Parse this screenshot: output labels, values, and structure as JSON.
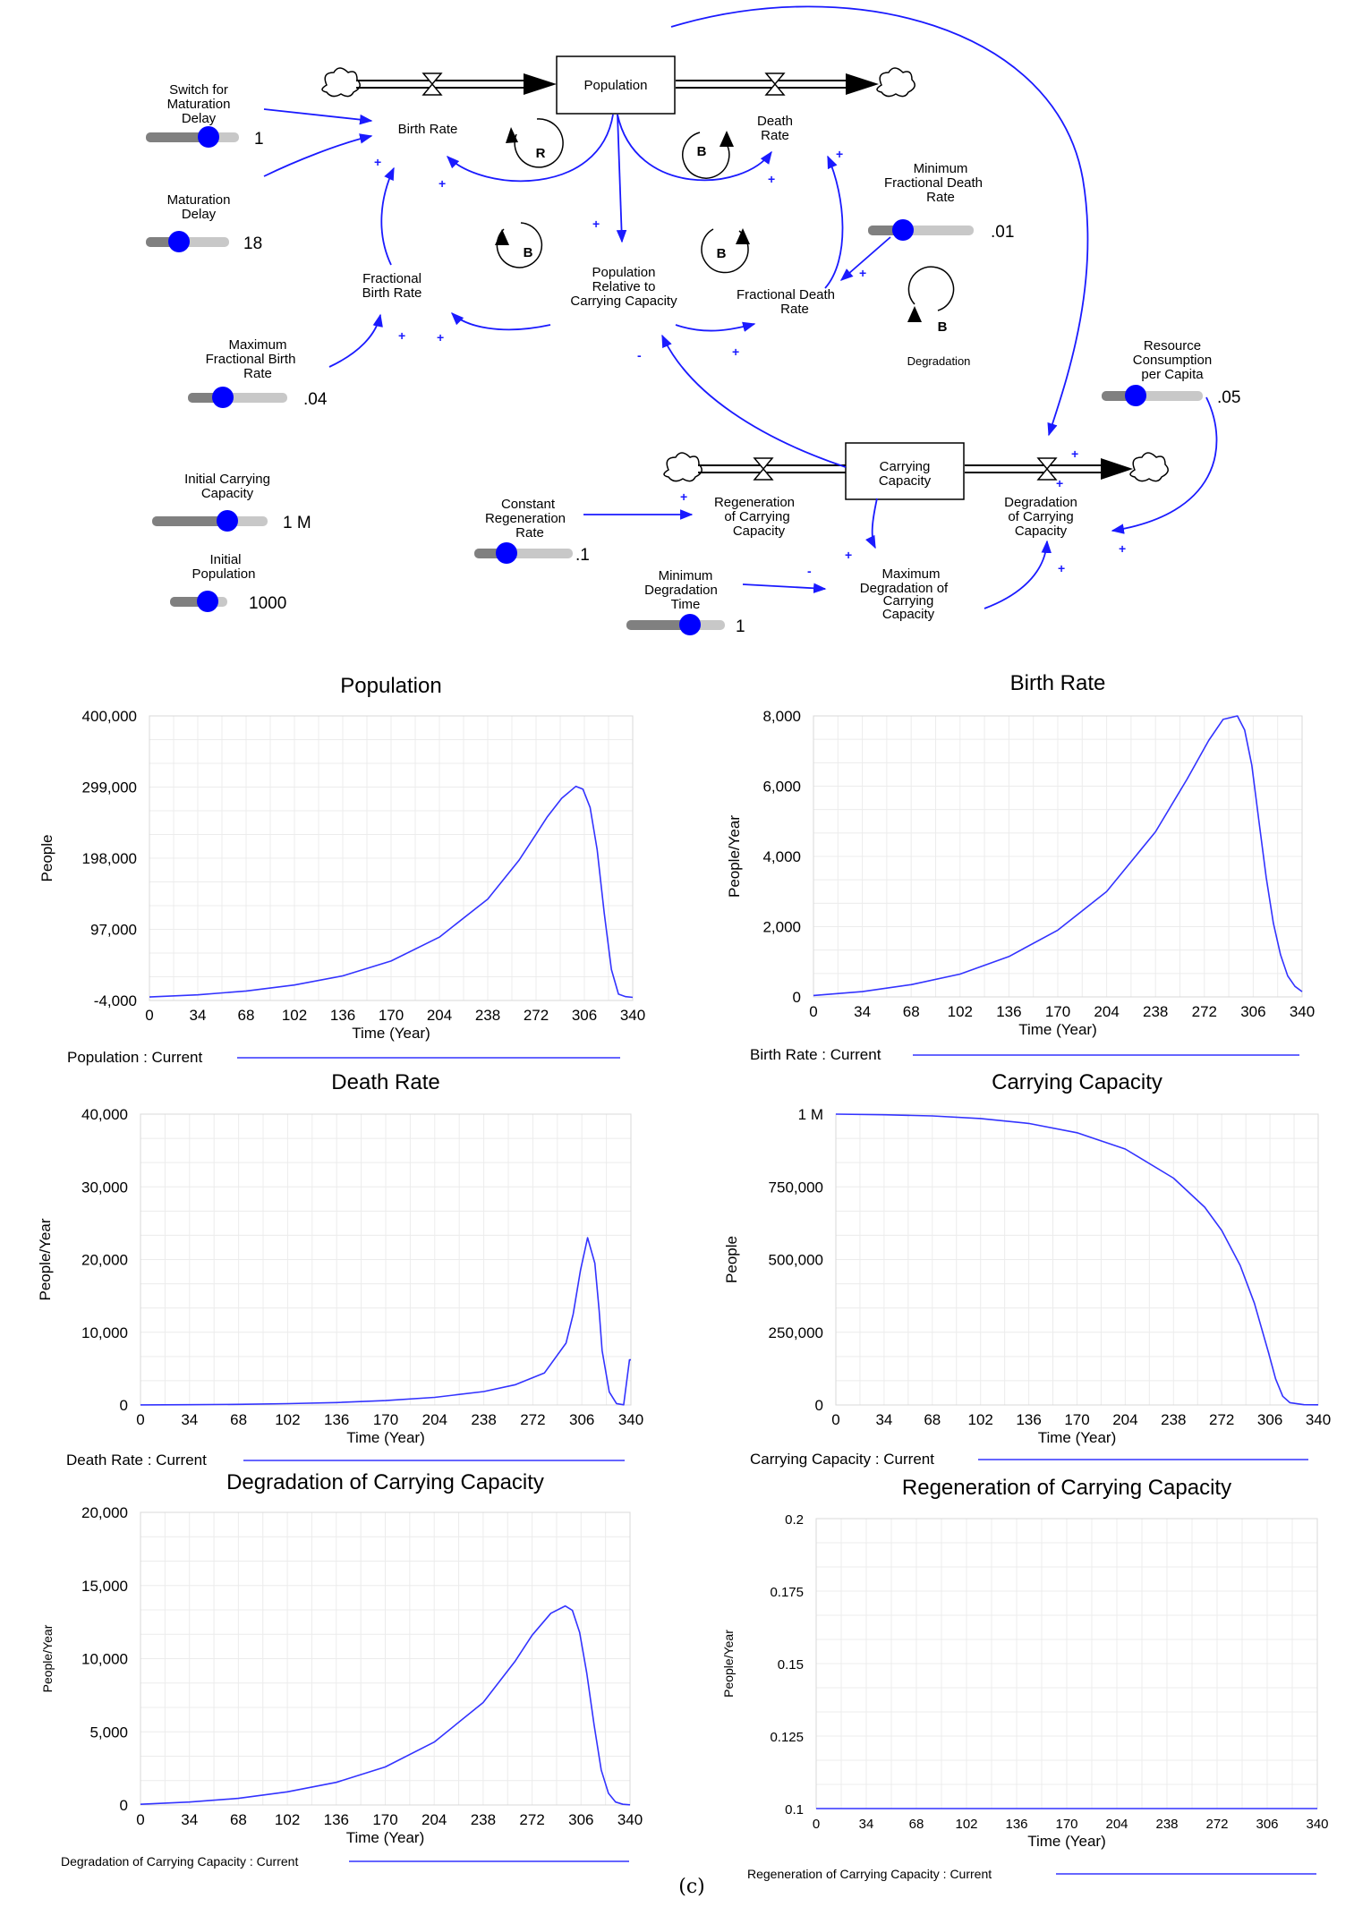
{
  "diagram": {
    "variables": {
      "population": "Population",
      "birth_rate": "Birth Rate",
      "death_rate": [
        "Death",
        "Rate"
      ],
      "fractional_birth_rate": [
        "Fractional",
        "Birth Rate"
      ],
      "pop_rel": [
        "Population",
        "Relative to",
        "Carrying Capacity"
      ],
      "fractional_death_rate": [
        "Fractional Death",
        "Rate"
      ],
      "carrying_capacity": [
        "Carrying",
        "Capacity"
      ],
      "regeneration": [
        "Regeneration",
        "of Carrying",
        "Capacity"
      ],
      "degradation": [
        "Degradation",
        "of Carrying",
        "Capacity"
      ],
      "max_degradation": [
        "Maximum",
        "Degradation of",
        "Carrying",
        "Capacity"
      ]
    },
    "sliders": {
      "switch_maturation": {
        "label": [
          "Switch for",
          "Maturation",
          "Delay"
        ],
        "value": "1",
        "fill": 0.7
      },
      "maturation_delay": {
        "label": [
          "Maturation",
          "Delay"
        ],
        "value": "18",
        "fill": 0.4
      },
      "min_frac_death": {
        "label": [
          "Minimum",
          "Fractional Death",
          "Rate"
        ],
        "value": ".01",
        "fill": 0.33
      },
      "max_frac_birth": {
        "label": [
          "Maximum",
          "Fractional Birth",
          "Rate"
        ],
        "value": ".04",
        "fill": 0.35
      },
      "resource_consumption": {
        "label": [
          "Resource",
          "Consumption",
          "per Capita"
        ],
        "value": ".05",
        "fill": 0.33
      },
      "initial_cc": {
        "label": [
          "Initial Carrying",
          "Capacity"
        ],
        "value": "1 M",
        "fill": 0.75
      },
      "initial_pop": {
        "label": [
          "Initial",
          "Population"
        ],
        "value": "1000",
        "fill": 0.75
      },
      "constant_regen": {
        "label": [
          "Constant",
          "Regeneration",
          "Rate"
        ],
        "value": ".1",
        "fill": 0.4
      },
      "min_degradation_time": {
        "label": [
          "Minimum",
          "Degradation",
          "Time"
        ],
        "value": "1",
        "fill": 0.65
      }
    },
    "loops": {
      "r": "R",
      "b": "B",
      "degradation_name": "Degradation"
    },
    "polarity": {
      "plus": "+",
      "minus": "-"
    }
  },
  "caption": "(c)",
  "chart_data": [
    {
      "type": "line",
      "title": "Population",
      "xlabel": "Time (Year)",
      "ylabel": "People",
      "x_ticks": [
        "0",
        "34",
        "68",
        "102",
        "136",
        "170",
        "204",
        "238",
        "272",
        "306",
        "340"
      ],
      "y_ticks": [
        "400,000",
        "299,000",
        "198,000",
        "97,000",
        "-4,000"
      ],
      "xlim": [
        0,
        340
      ],
      "ylim": [
        -4000,
        400000
      ],
      "legend": "Population : Current",
      "color": "#3333ff",
      "x": [
        0,
        34,
        68,
        102,
        136,
        170,
        204,
        238,
        260,
        272,
        280,
        290,
        300,
        305,
        310,
        315,
        320,
        325,
        330,
        335,
        340
      ],
      "y": [
        1000,
        4000,
        9500,
        18000,
        31000,
        52000,
        86000,
        140000,
        195000,
        232000,
        257000,
        283000,
        300000,
        296000,
        270000,
        210000,
        120000,
        40000,
        5000,
        1500,
        500
      ]
    },
    {
      "type": "line",
      "title": "Birth Rate",
      "xlabel": "Time (Year)",
      "ylabel": "People/Year",
      "x_ticks": [
        "0",
        "34",
        "68",
        "102",
        "136",
        "170",
        "204",
        "238",
        "272",
        "306",
        "340"
      ],
      "y_ticks": [
        "8,000",
        "6,000",
        "4,000",
        "2,000",
        "0"
      ],
      "xlim": [
        0,
        340
      ],
      "ylim": [
        0,
        8000
      ],
      "legend": "Birth Rate : Current",
      "color": "#3333ff",
      "x": [
        0,
        34,
        68,
        102,
        136,
        170,
        204,
        238,
        260,
        275,
        285,
        295,
        300,
        305,
        310,
        315,
        320,
        325,
        330,
        335,
        340
      ],
      "y": [
        40,
        150,
        350,
        650,
        1150,
        1900,
        3000,
        4700,
        6200,
        7300,
        7900,
        8000,
        7600,
        6600,
        5000,
        3400,
        2100,
        1200,
        600,
        300,
        150
      ]
    },
    {
      "type": "line",
      "title": "Death Rate",
      "xlabel": "Time (Year)",
      "ylabel": "People/Year",
      "x_ticks": [
        "0",
        "34",
        "68",
        "102",
        "136",
        "170",
        "204",
        "238",
        "272",
        "306",
        "340"
      ],
      "y_ticks": [
        "40,000",
        "30,000",
        "20,000",
        "10,000",
        "0"
      ],
      "xlim": [
        0,
        340
      ],
      "ylim": [
        0,
        40000
      ],
      "legend": "Death Rate : Current",
      "color": "#3333ff",
      "x": [
        0,
        34,
        68,
        102,
        136,
        170,
        204,
        238,
        260,
        280,
        295,
        300,
        305,
        310,
        315,
        318,
        320,
        325,
        330,
        335,
        339,
        340
      ],
      "y": [
        10,
        40,
        90,
        180,
        330,
        600,
        1050,
        1850,
        2800,
        4400,
        8500,
        12500,
        18500,
        23000,
        19500,
        13000,
        7500,
        1800,
        200,
        20,
        6200,
        6200
      ]
    },
    {
      "type": "line",
      "title": "Carrying Capacity",
      "xlabel": "Time (Year)",
      "ylabel": "People",
      "x_ticks": [
        "0",
        "34",
        "68",
        "102",
        "136",
        "170",
        "204",
        "238",
        "272",
        "306",
        "340"
      ],
      "y_ticks": [
        "1 M",
        "750,000",
        "500,000",
        "250,000",
        "0"
      ],
      "xlim": [
        0,
        340
      ],
      "ylim": [
        0,
        1000000
      ],
      "legend": "Carrying Capacity : Current",
      "color": "#3333ff",
      "x": [
        0,
        34,
        68,
        102,
        136,
        170,
        204,
        238,
        260,
        272,
        285,
        295,
        305,
        310,
        315,
        320,
        330,
        340
      ],
      "y": [
        1000000,
        998000,
        994000,
        985000,
        968000,
        936000,
        880000,
        780000,
        680000,
        600000,
        480000,
        350000,
        180000,
        90000,
        30000,
        8000,
        1000,
        500
      ]
    },
    {
      "type": "line",
      "title": "Degradation of Carrying Capacity",
      "xlabel": "Time (Year)",
      "ylabel": "People/Year",
      "x_ticks": [
        "0",
        "34",
        "68",
        "102",
        "136",
        "170",
        "204",
        "238",
        "272",
        "306",
        "340"
      ],
      "y_ticks": [
        "20,000",
        "15,000",
        "10,000",
        "5,000",
        "0"
      ],
      "xlim": [
        0,
        340
      ],
      "ylim": [
        0,
        20000
      ],
      "legend": "Degradation of Carrying Capacity : Current",
      "color": "#3333ff",
      "x": [
        0,
        34,
        68,
        102,
        136,
        170,
        204,
        238,
        260,
        272,
        285,
        295,
        300,
        305,
        310,
        315,
        320,
        325,
        330,
        335,
        340
      ],
      "y": [
        50,
        200,
        450,
        900,
        1550,
        2600,
        4300,
        7000,
        9800,
        11600,
        13100,
        13600,
        13300,
        11800,
        9000,
        5500,
        2400,
        800,
        200,
        50,
        10
      ]
    },
    {
      "type": "line",
      "title": "Regeneration of Carrying Capacity",
      "xlabel": "Time (Year)",
      "ylabel": "People/Year",
      "x_ticks": [
        "0",
        "34",
        "68",
        "102",
        "136",
        "170",
        "204",
        "238",
        "272",
        "306",
        "340"
      ],
      "y_ticks": [
        "0.2",
        "0.175",
        "0.15",
        "0.125",
        "0.1"
      ],
      "xlim": [
        0,
        340
      ],
      "ylim": [
        0.1,
        0.2
      ],
      "legend": "Regeneration of Carrying Capacity : Current",
      "color": "#3333ff",
      "x": [
        0,
        340
      ],
      "y": [
        0.1,
        0.1
      ]
    }
  ]
}
